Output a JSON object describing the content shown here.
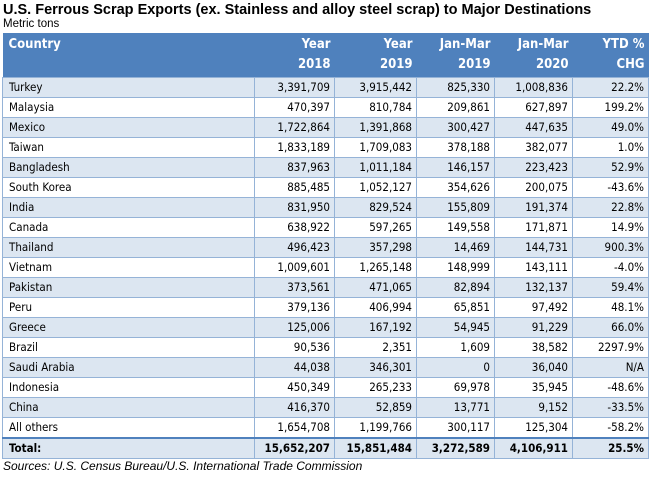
{
  "title": "U.S. Ferrous Scrap Exports (ex. Stainless and alloy steel scrap) to Major Destinations",
  "subtitle": "Metric tons",
  "headers": [
    [
      "Country",
      ""
    ],
    [
      "Year",
      "2018"
    ],
    [
      "Year",
      "2019"
    ],
    [
      "Jan-Mar",
      "2019"
    ],
    [
      "Jan-Mar",
      "2020"
    ],
    [
      "YTD %",
      "CHG"
    ]
  ],
  "rows": [
    [
      "Turkey",
      "3,391,709",
      "3,915,442",
      "825,330",
      "1,008,836",
      "22.2%"
    ],
    [
      "Malaysia",
      "470,397",
      "810,784",
      "209,861",
      "627,897",
      "199.2%"
    ],
    [
      "Mexico",
      "1,722,864",
      "1,391,868",
      "300,427",
      "447,635",
      "49.0%"
    ],
    [
      "Taiwan",
      "1,833,189",
      "1,709,083",
      "378,188",
      "382,077",
      "1.0%"
    ],
    [
      "Bangladesh",
      "837,963",
      "1,011,184",
      "146,157",
      "223,423",
      "52.9%"
    ],
    [
      "South Korea",
      "885,485",
      "1,052,127",
      "354,626",
      "200,075",
      "-43.6%"
    ],
    [
      "India",
      "831,950",
      "829,524",
      "155,809",
      "191,374",
      "22.8%"
    ],
    [
      "Canada",
      "638,922",
      "597,265",
      "149,558",
      "171,871",
      "14.9%"
    ],
    [
      "Thailand",
      "496,423",
      "357,298",
      "14,469",
      "144,731",
      "900.3%"
    ],
    [
      "Vietnam",
      "1,009,601",
      "1,265,148",
      "148,999",
      "143,111",
      "-4.0%"
    ],
    [
      "Pakistan",
      "373,561",
      "471,065",
      "82,894",
      "132,137",
      "59.4%"
    ],
    [
      "Peru",
      "379,136",
      "406,994",
      "65,851",
      "97,492",
      "48.1%"
    ],
    [
      "Greece",
      "125,006",
      "167,192",
      "54,945",
      "91,229",
      "66.0%"
    ],
    [
      "Brazil",
      "90,536",
      "2,351",
      "1,609",
      "38,582",
      "2297.9%"
    ],
    [
      "Saudi Arabia",
      "44,038",
      "346,301",
      "0",
      "36,040",
      "N/A"
    ],
    [
      "Indonesia",
      "450,349",
      "265,233",
      "69,978",
      "35,945",
      "-48.6%"
    ],
    [
      "China",
      "416,370",
      "52,859",
      "13,771",
      "9,152",
      "-33.5%"
    ],
    [
      "All others",
      "1,654,708",
      "1,199,766",
      "300,117",
      "125,304",
      "-58.2%"
    ]
  ],
  "total": [
    "Total:",
    "15,652,207",
    "15,851,484",
    "3,272,589",
    "4,106,911",
    "25.5%"
  ],
  "source": "Sources: U.S. Census Bureau/U.S. International Trade Commission",
  "colors": {
    "header": "#4f81bd",
    "band": "#dce6f1",
    "border": "#95b3d7"
  }
}
